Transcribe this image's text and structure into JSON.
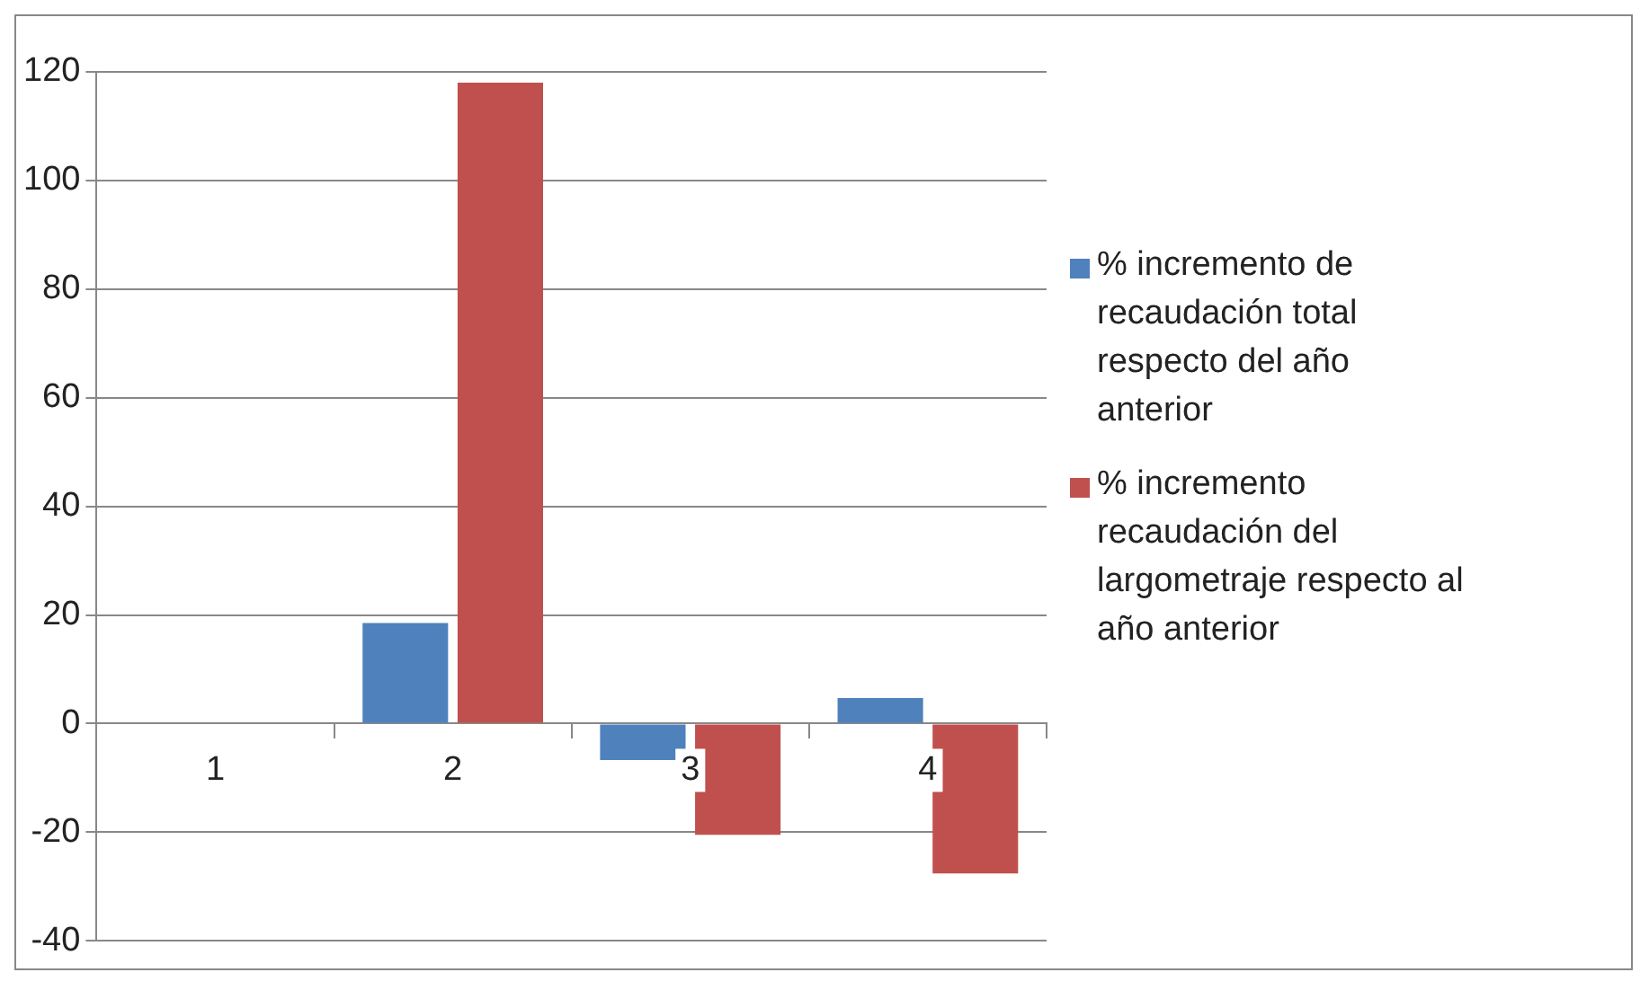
{
  "chart_data": {
    "type": "bar",
    "categories": [
      "1",
      "2",
      "3",
      "4"
    ],
    "series": [
      {
        "name": "% incremento de recaudación total respecto del año anterior",
        "color": "#4f81bd",
        "values": [
          null,
          18.5,
          -6.7,
          4.7
        ]
      },
      {
        "name": "% incremento recaudación del largometraje respecto al año anterior",
        "color": "#c0504d",
        "values": [
          null,
          118,
          -20.5,
          -27.6
        ]
      }
    ],
    "ylim": [
      -40,
      120
    ],
    "yticks": [
      -40,
      -20,
      0,
      20,
      40,
      60,
      80,
      100,
      120
    ],
    "grid": "y",
    "legend": "right"
  }
}
